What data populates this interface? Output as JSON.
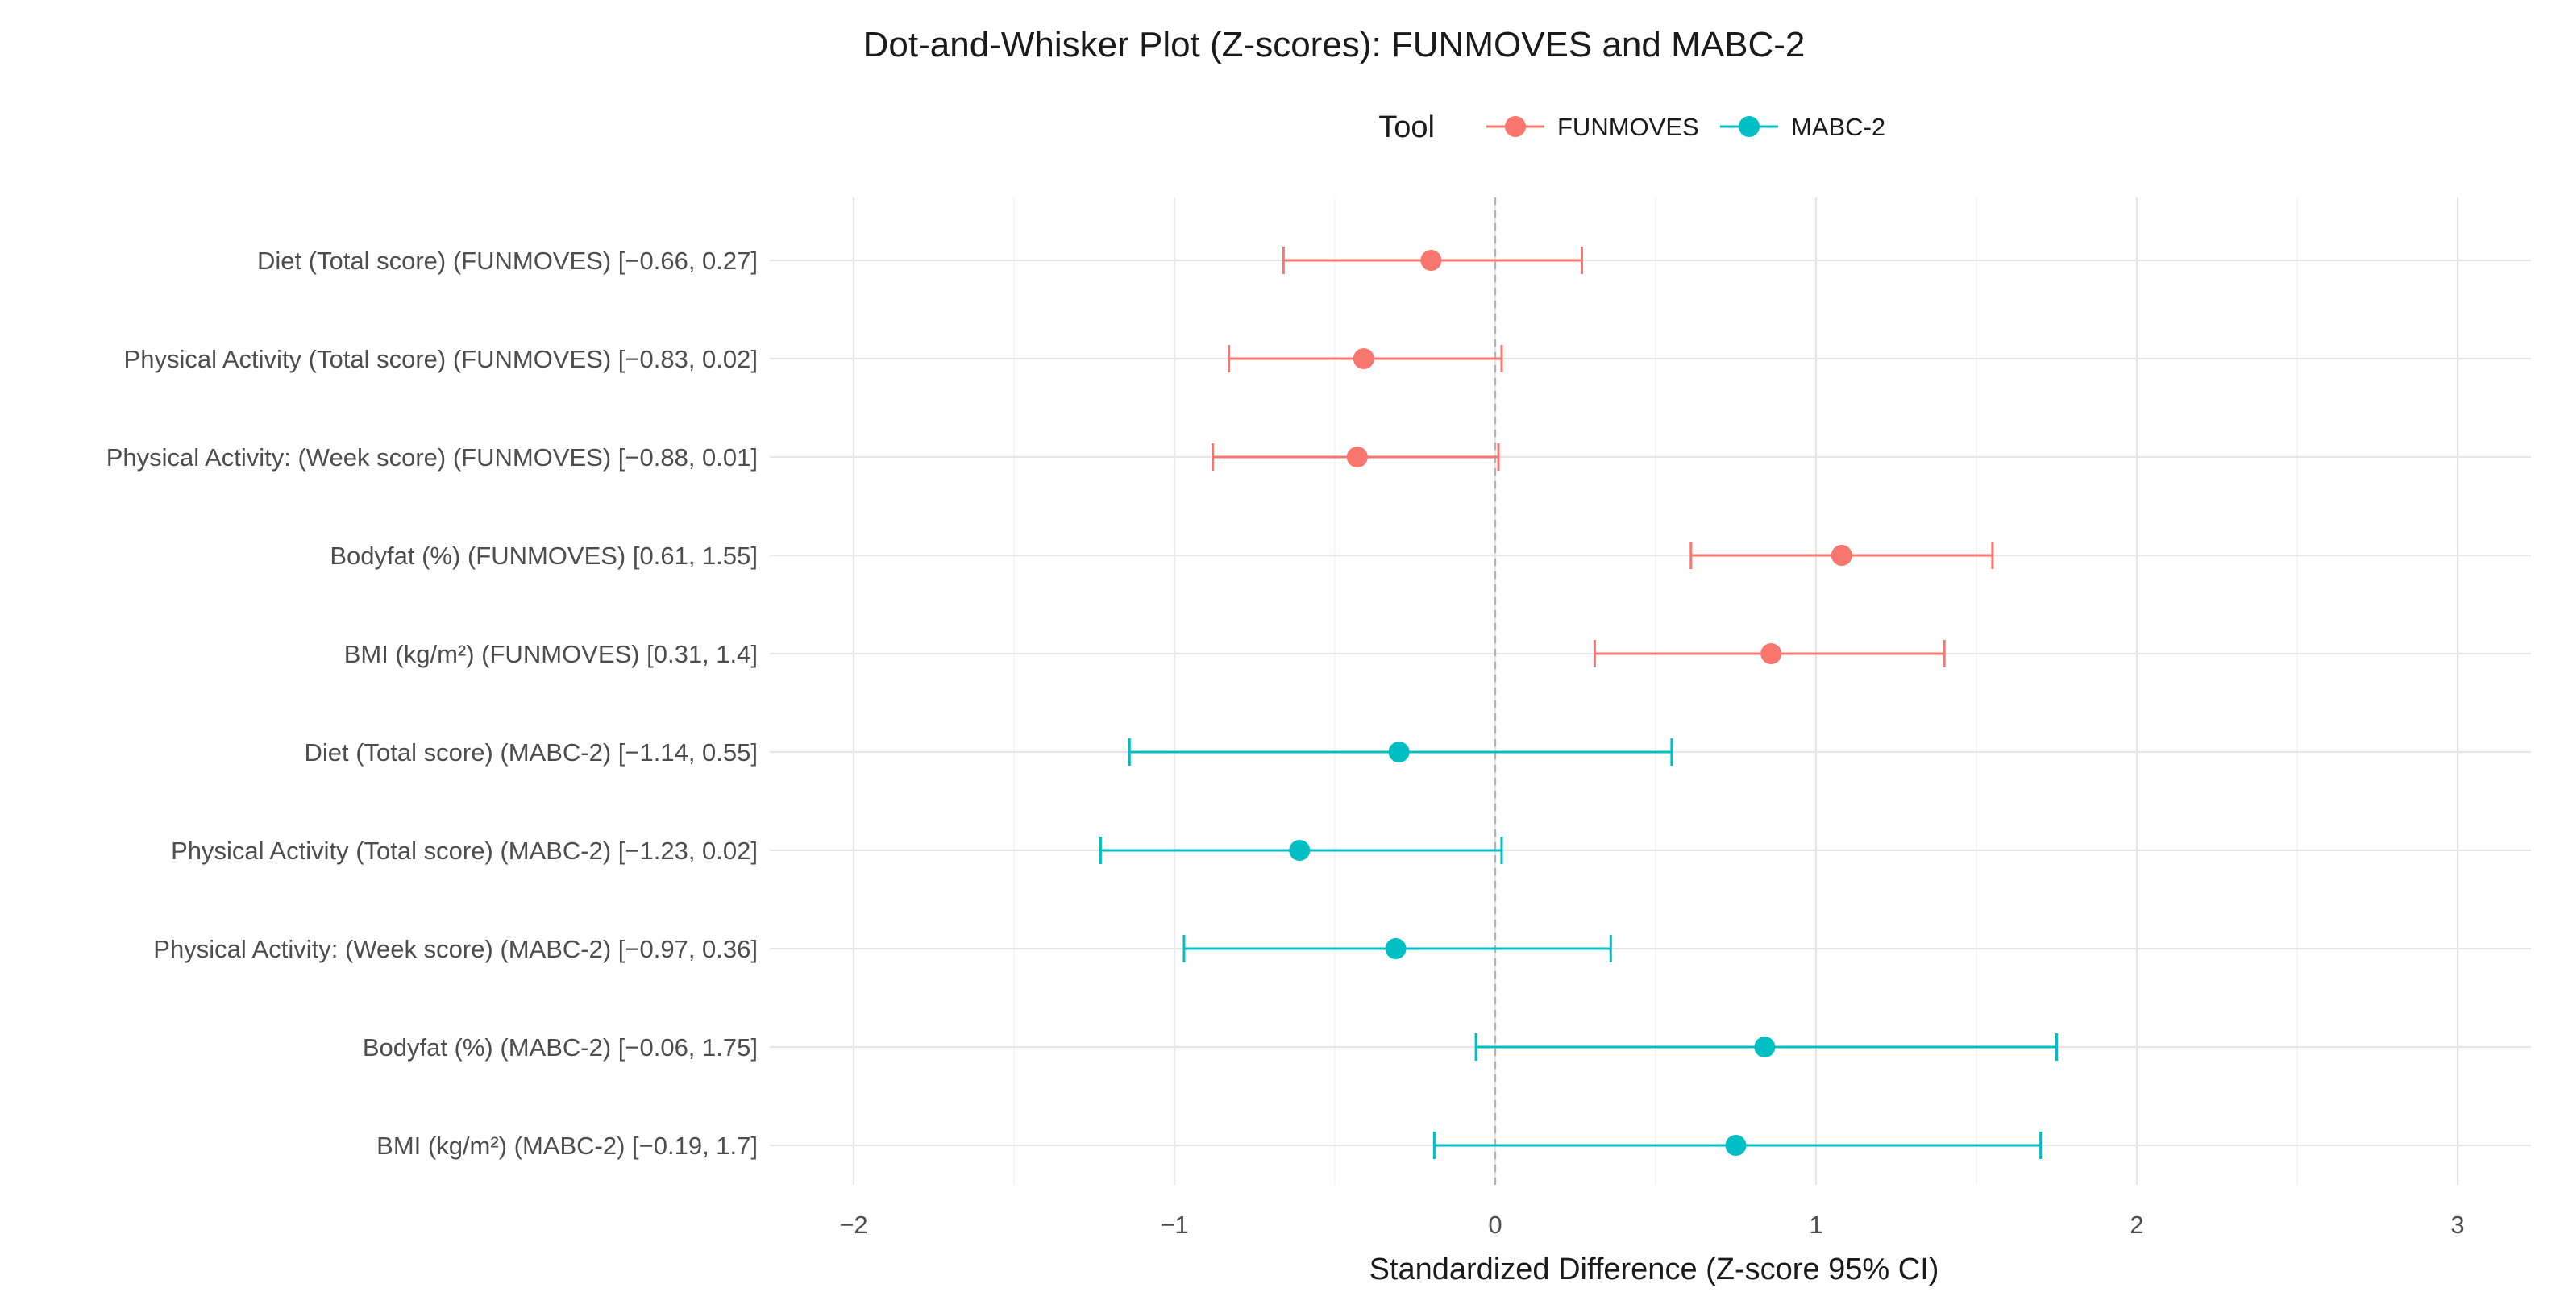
{
  "chart_data": {
    "type": "scatter",
    "title": "Dot-and-Whisker Plot (Z-scores): FUNMOVES and MABC-2",
    "xlabel": "Standardized Difference (Z-score 95% CI)",
    "ylabel": "",
    "xlim": [
      -2.0,
      3.25
    ],
    "xticks": [
      -2,
      -1,
      0,
      1,
      2,
      3
    ],
    "xtick_labels": [
      "−2",
      "−1",
      "0",
      "1",
      "2",
      "3"
    ],
    "reference_line": 0,
    "grid": true,
    "legend": {
      "title": "Tool",
      "position": "top",
      "entries": [
        {
          "name": "FUNMOVES",
          "color": "#F8766D"
        },
        {
          "name": "MABC-2",
          "color": "#00BFC4"
        }
      ]
    },
    "rows": [
      {
        "label": "Diet (Total score) (FUNMOVES) [−0.66, 0.27]",
        "tool": "FUNMOVES",
        "estimate": -0.2,
        "lower": -0.66,
        "upper": 0.27
      },
      {
        "label": "Physical Activity (Total score) (FUNMOVES) [−0.83, 0.02]",
        "tool": "FUNMOVES",
        "estimate": -0.41,
        "lower": -0.83,
        "upper": 0.02
      },
      {
        "label": "Physical Activity: (Week score) (FUNMOVES) [−0.88, 0.01]",
        "tool": "FUNMOVES",
        "estimate": -0.43,
        "lower": -0.88,
        "upper": 0.01
      },
      {
        "label": "Bodyfat (%) (FUNMOVES) [0.61, 1.55]",
        "tool": "FUNMOVES",
        "estimate": 1.08,
        "lower": 0.61,
        "upper": 1.55
      },
      {
        "label": "BMI (kg/m²) (FUNMOVES) [0.31, 1.4]",
        "tool": "FUNMOVES",
        "estimate": 0.86,
        "lower": 0.31,
        "upper": 1.4
      },
      {
        "label": "Diet (Total score) (MABC-2) [−1.14, 0.55]",
        "tool": "MABC-2",
        "estimate": -0.3,
        "lower": -1.14,
        "upper": 0.55
      },
      {
        "label": "Physical Activity (Total score) (MABC-2) [−1.23, 0.02]",
        "tool": "MABC-2",
        "estimate": -0.61,
        "lower": -1.23,
        "upper": 0.02
      },
      {
        "label": "Physical Activity: (Week score) (MABC-2) [−0.97, 0.36]",
        "tool": "MABC-2",
        "estimate": -0.31,
        "lower": -0.97,
        "upper": 0.36
      },
      {
        "label": "Bodyfat (%) (MABC-2) [−0.06, 1.75]",
        "tool": "MABC-2",
        "estimate": 0.84,
        "lower": -0.06,
        "upper": 1.75
      },
      {
        "label": "BMI (kg/m²) (MABC-2) [−0.19, 1.7]",
        "tool": "MABC-2",
        "estimate": 0.75,
        "lower": -0.19,
        "upper": 1.7
      }
    ]
  }
}
